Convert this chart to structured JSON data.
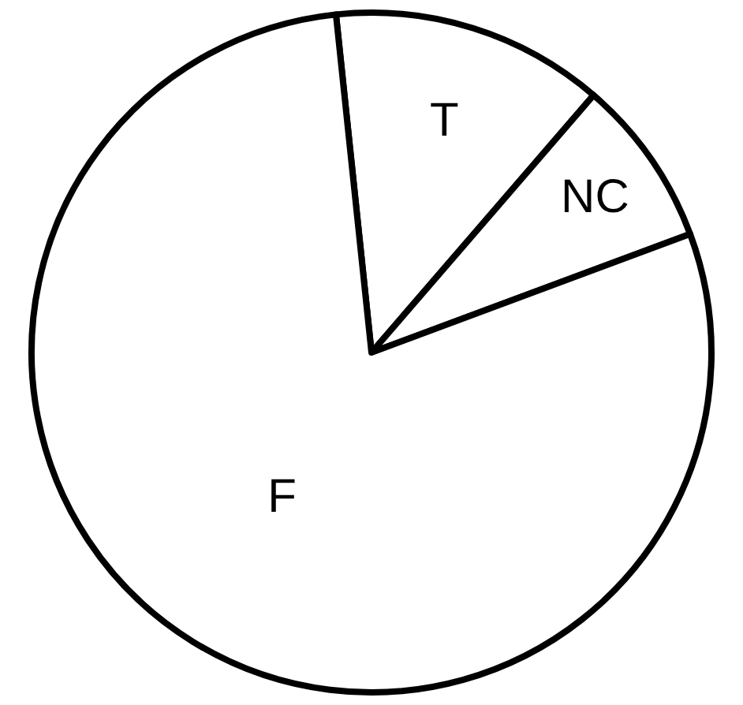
{
  "chart_data": {
    "type": "pie",
    "categories": [
      "T",
      "NC",
      "F"
    ],
    "values": [
      13,
      8,
      79
    ],
    "colors": [
      "#ffffff",
      "#ffffff",
      "#ffffff"
    ],
    "legend": false
  }
}
